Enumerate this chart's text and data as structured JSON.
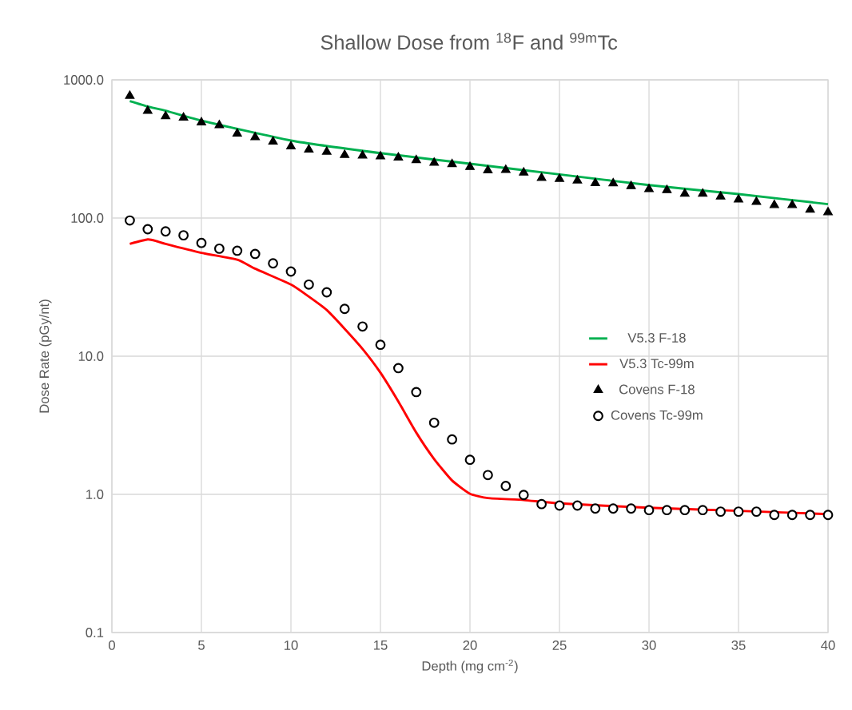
{
  "chart_data": {
    "type": "line",
    "title": "Shallow Dose from $^{18}$F and $^{99m}$Tc",
    "xlabel": "Depth (mg cm$^{-2}$)",
    "ylabel": "Dose Rate (pGy/nt)",
    "log": "y",
    "grid": true,
    "legend": "right",
    "xlim": [
      0,
      40
    ],
    "xticks": [
      0,
      5,
      10,
      15,
      20,
      25,
      30,
      35,
      40
    ],
    "ylim": [
      0.1,
      1000
    ],
    "yticks": [
      {
        "value": 0.1,
        "label": "0.1"
      },
      {
        "value": 1,
        "label": "1.0"
      },
      {
        "value": 10,
        "label": "10.0"
      },
      {
        "value": 100,
        "label": "100.0"
      },
      {
        "value": 1000,
        "label": "1000.0"
      }
    ],
    "series": [
      {
        "name": "V5.3 F-18",
        "marker": "none",
        "color": "#00b050",
        "x": [
          1,
          2,
          3,
          5,
          10,
          15,
          20,
          25,
          30,
          35,
          40
        ],
        "values": [
          701,
          641,
          598,
          507,
          364,
          295,
          247,
          207,
          173,
          149,
          126
        ]
      },
      {
        "name": "V5.3 Tc-99m",
        "marker": "none",
        "color": "#ff0000",
        "x": [
          1,
          2,
          2.5,
          3,
          5,
          7,
          8,
          10,
          11,
          12,
          13,
          14,
          15,
          16,
          17,
          18,
          19,
          20,
          21,
          23,
          25,
          30,
          35,
          40
        ],
        "values": [
          65,
          70,
          68,
          65,
          56,
          50,
          43,
          33,
          27,
          21.6,
          15.8,
          11.3,
          7.6,
          4.7,
          2.8,
          1.8,
          1.26,
          1.01,
          0.94,
          0.91,
          0.86,
          0.8,
          0.76,
          0.72
        ]
      },
      {
        "name": "Covens F-18",
        "type": "scatter",
        "marker": "triangle",
        "color": "#000000",
        "x": [
          1,
          2,
          3,
          4,
          5,
          6,
          7,
          8,
          9,
          10,
          11,
          12,
          13,
          14,
          15,
          16,
          17,
          18,
          19,
          20,
          21,
          22,
          23,
          24,
          25,
          26,
          27,
          28,
          29,
          30,
          31,
          32,
          33,
          34,
          35,
          36,
          37,
          38,
          39,
          40
        ],
        "values": [
          766,
          596,
          545,
          533,
          492,
          470,
          408,
          384,
          357,
          330,
          313,
          302,
          286,
          283,
          279,
          274,
          262,
          251,
          245,
          234,
          221,
          223,
          213,
          195,
          192,
          187,
          179,
          178,
          170,
          162,
          159,
          150,
          150,
          143,
          136,
          131,
          124,
          124,
          115,
          110
        ]
      },
      {
        "name": "Covens Tc-99m",
        "type": "scatter",
        "marker": "circle",
        "color": "#000000",
        "x": [
          1,
          2,
          3,
          4,
          5,
          6,
          7,
          8,
          9,
          10,
          11,
          12,
          13,
          14,
          15,
          16,
          17,
          18,
          19,
          20,
          21,
          22,
          23,
          24,
          25,
          26,
          27,
          28,
          29,
          30,
          31,
          32,
          33,
          34,
          35,
          36,
          37,
          38,
          39,
          40
        ],
        "values": [
          96,
          83,
          80,
          75,
          66,
          60,
          58,
          55,
          47,
          41,
          33,
          29,
          22,
          16.4,
          12.1,
          8.2,
          5.5,
          3.3,
          2.5,
          1.78,
          1.38,
          1.15,
          0.99,
          0.85,
          0.83,
          0.83,
          0.79,
          0.79,
          0.79,
          0.77,
          0.77,
          0.77,
          0.77,
          0.75,
          0.75,
          0.75,
          0.71,
          0.71,
          0.71,
          0.71
        ]
      }
    ]
  }
}
